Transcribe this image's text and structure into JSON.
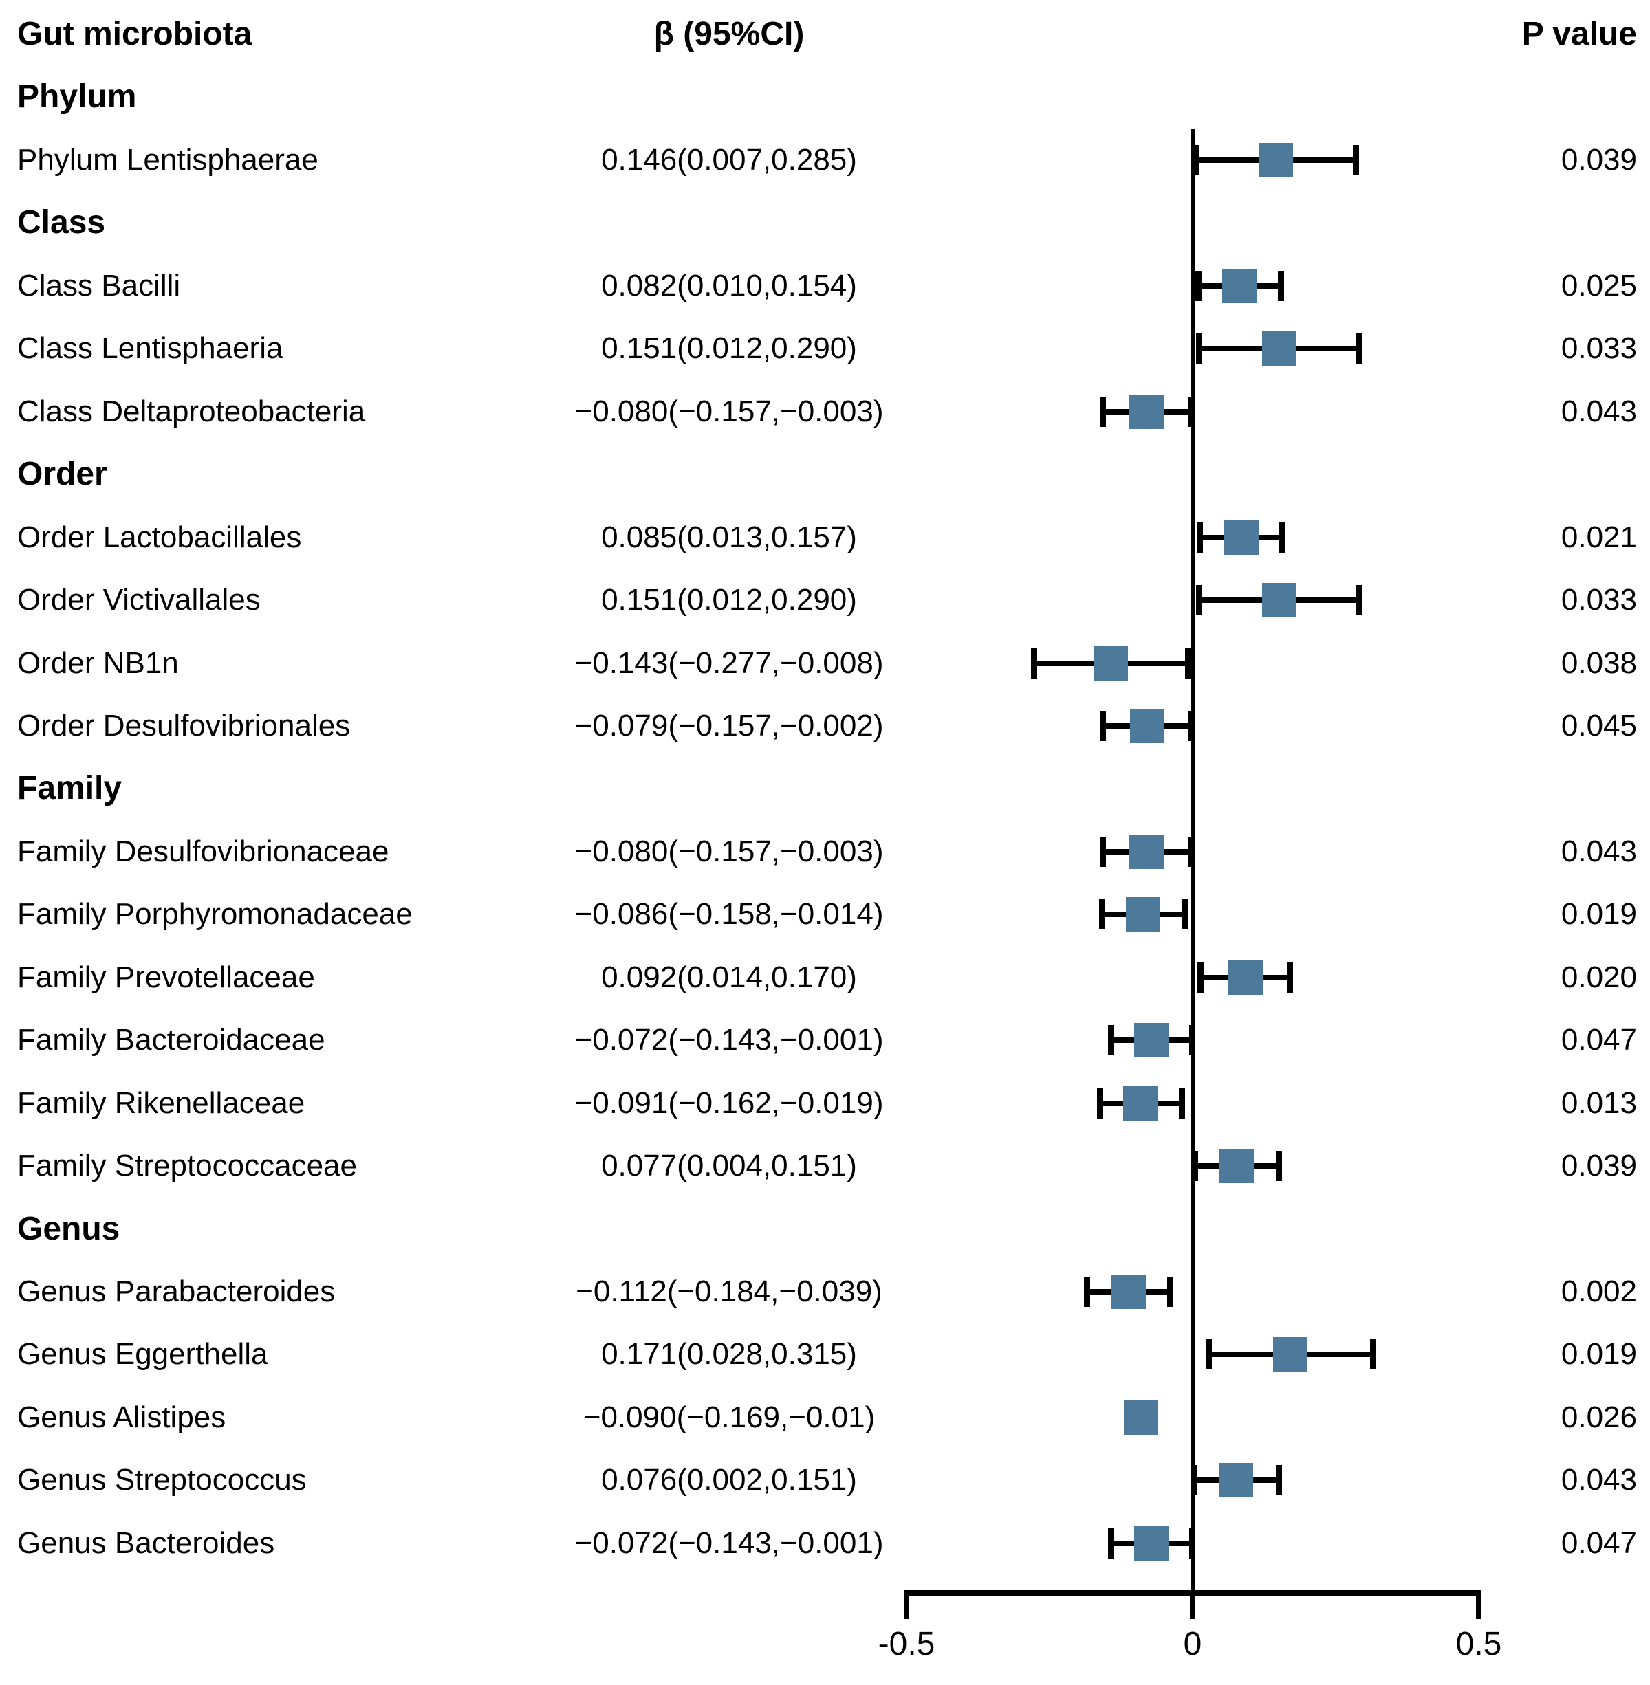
{
  "figure": {
    "columns": {
      "taxa": "Gut microbiota",
      "beta": "β (95%CI)",
      "p": "P value"
    }
  },
  "chart_data": {
    "type": "forest",
    "title": "Gut microbiota forest plot",
    "xlabel": "",
    "xlim": [
      -0.5,
      0.5
    ],
    "x_ticks": [
      {
        "label": "-0.5",
        "value": -0.5
      },
      {
        "label": "0",
        "value": 0
      },
      {
        "label": "0.5",
        "value": 0.5
      }
    ],
    "reference_line": 0,
    "grid": false,
    "marker_shape": "square",
    "marker_color": "#4D7A9B",
    "line_color": "#000000",
    "sections": [
      {
        "header": "Phylum",
        "rows": [
          {
            "label": "Phylum Lentisphaerae",
            "beta_ci": "0.146(0.007,0.285)",
            "beta": 0.146,
            "lo": 0.007,
            "hi": 0.285,
            "p": "0.039",
            "whiskers": true
          }
        ]
      },
      {
        "header": "Class",
        "rows": [
          {
            "label": "Class Bacilli",
            "beta_ci": "0.082(0.010,0.154)",
            "beta": 0.082,
            "lo": 0.01,
            "hi": 0.154,
            "p": "0.025",
            "whiskers": true
          },
          {
            "label": "Class Lentisphaeria",
            "beta_ci": "0.151(0.012,0.290)",
            "beta": 0.151,
            "lo": 0.012,
            "hi": 0.29,
            "p": "0.033",
            "whiskers": true
          },
          {
            "label": "Class Deltaproteobacteria",
            "beta_ci": "−0.080(−0.157,−0.003)",
            "beta": -0.08,
            "lo": -0.157,
            "hi": -0.003,
            "p": "0.043",
            "whiskers": true
          }
        ]
      },
      {
        "header": "Order",
        "rows": [
          {
            "label": "Order Lactobacillales",
            "beta_ci": "0.085(0.013,0.157)",
            "beta": 0.085,
            "lo": 0.013,
            "hi": 0.157,
            "p": "0.021",
            "whiskers": true
          },
          {
            "label": "Order Victivallales",
            "beta_ci": "0.151(0.012,0.290)",
            "beta": 0.151,
            "lo": 0.012,
            "hi": 0.29,
            "p": "0.033",
            "whiskers": true
          },
          {
            "label": "Order NB1n",
            "beta_ci": "−0.143(−0.277,−0.008)",
            "beta": -0.143,
            "lo": -0.277,
            "hi": -0.008,
            "p": "0.038",
            "whiskers": true
          },
          {
            "label": "Order Desulfovibrionales",
            "beta_ci": "−0.079(−0.157,−0.002)",
            "beta": -0.079,
            "lo": -0.157,
            "hi": -0.002,
            "p": "0.045",
            "whiskers": true
          }
        ]
      },
      {
        "header": "Family",
        "rows": [
          {
            "label": "Family Desulfovibrionaceae",
            "beta_ci": "−0.080(−0.157,−0.003)",
            "beta": -0.08,
            "lo": -0.157,
            "hi": -0.003,
            "p": "0.043",
            "whiskers": true
          },
          {
            "label": "Family Porphyromonadaceae",
            "beta_ci": "−0.086(−0.158,−0.014)",
            "beta": -0.086,
            "lo": -0.158,
            "hi": -0.014,
            "p": "0.019",
            "whiskers": true
          },
          {
            "label": "Family Prevotellaceae",
            "beta_ci": "0.092(0.014,0.170)",
            "beta": 0.092,
            "lo": 0.014,
            "hi": 0.17,
            "p": "0.020",
            "whiskers": true
          },
          {
            "label": "Family Bacteroidaceae",
            "beta_ci": "−0.072(−0.143,−0.001)",
            "beta": -0.072,
            "lo": -0.143,
            "hi": -0.001,
            "p": "0.047",
            "whiskers": true
          },
          {
            "label": "Family Rikenellaceae",
            "beta_ci": "−0.091(−0.162,−0.019)",
            "beta": -0.091,
            "lo": -0.162,
            "hi": -0.019,
            "p": "0.013",
            "whiskers": true
          },
          {
            "label": "Family Streptococcaceae",
            "beta_ci": "0.077(0.004,0.151)",
            "beta": 0.077,
            "lo": 0.004,
            "hi": 0.151,
            "p": "0.039",
            "whiskers": true
          }
        ]
      },
      {
        "header": "Genus",
        "rows": [
          {
            "label": "Genus Parabacteroides",
            "beta_ci": "−0.112(−0.184,−0.039)",
            "beta": -0.112,
            "lo": -0.184,
            "hi": -0.039,
            "p": "0.002",
            "whiskers": true
          },
          {
            "label": "Genus Eggerthella",
            "beta_ci": "0.171(0.028,0.315)",
            "beta": 0.171,
            "lo": 0.028,
            "hi": 0.315,
            "p": "0.019",
            "whiskers": true
          },
          {
            "label": "Genus Alistipes",
            "beta_ci": "−0.090(−0.169,−0.01)",
            "beta": -0.09,
            "lo": -0.169,
            "hi": -0.01,
            "p": "0.026",
            "whiskers": false
          },
          {
            "label": "Genus Streptococcus",
            "beta_ci": "0.076(0.002,0.151)",
            "beta": 0.076,
            "lo": 0.002,
            "hi": 0.151,
            "p": "0.043",
            "whiskers": true
          },
          {
            "label": "Genus Bacteroides",
            "beta_ci": "−0.072(−0.143,−0.001)",
            "beta": -0.072,
            "lo": -0.143,
            "hi": -0.001,
            "p": "0.047",
            "whiskers": true
          }
        ]
      }
    ]
  }
}
